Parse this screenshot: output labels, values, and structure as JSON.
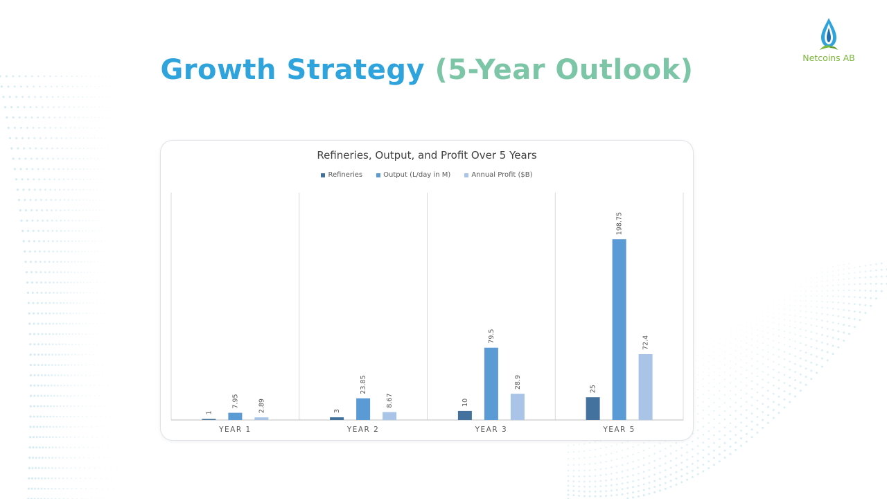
{
  "slide": {
    "title_main": "Growth Strategy ",
    "title_paren": "(5-Year Outlook)"
  },
  "logo": {
    "text": "Netcoins AB",
    "icon": "droplet-leaf-icon"
  },
  "colors": {
    "title_blue": "#2fa3dc",
    "title_green": "#7cc6a7",
    "logo_green": "#7ab83a"
  },
  "chart_data": {
    "type": "bar",
    "title": "Refineries, Output, and Profit Over 5 Years",
    "categories": [
      "YEAR 1",
      "YEAR 2",
      "YEAR 3",
      "YEAR 5"
    ],
    "series": [
      {
        "name": "Refineries",
        "values": [
          1,
          3,
          10,
          25
        ],
        "labels": [
          "1",
          "3",
          "10",
          "25"
        ],
        "color": "#44729f"
      },
      {
        "name": "Output (L/day in M)",
        "values": [
          7.95,
          23.85,
          79.5,
          198.75
        ],
        "labels": [
          "7.95",
          "23.85",
          "79.5",
          "198.75"
        ],
        "color": "#5b9bd5"
      },
      {
        "name": "Annual Profit ($B)",
        "values": [
          2.89,
          8.67,
          28.9,
          72.4
        ],
        "labels": [
          "2.89",
          "8.67",
          "28.9",
          "72.4"
        ],
        "color": "#a9c4e6"
      }
    ],
    "ylim": [
      0,
      250
    ],
    "legend_position": "top",
    "grid": false,
    "data_labels": true,
    "xlabel": "",
    "ylabel": ""
  }
}
